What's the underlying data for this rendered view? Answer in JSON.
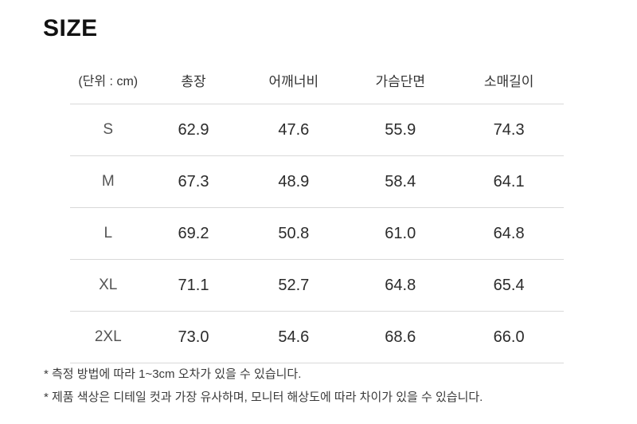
{
  "page": {
    "title": "SIZE"
  },
  "table": {
    "headers": [
      "(단위 : cm)",
      "총장",
      "어깨너비",
      "가슴단면",
      "소매길이"
    ],
    "rows": [
      {
        "size": "S",
        "values": [
          "62.9",
          "47.6",
          "55.9",
          "74.3"
        ]
      },
      {
        "size": "M",
        "values": [
          "67.3",
          "48.9",
          "58.4",
          "64.1"
        ]
      },
      {
        "size": "L",
        "values": [
          "69.2",
          "50.8",
          "61.0",
          "64.8"
        ]
      },
      {
        "size": "XL",
        "values": [
          "71.1",
          "52.7",
          "64.8",
          "65.4"
        ]
      },
      {
        "size": "2XL",
        "values": [
          "73.0",
          "54.6",
          "68.6",
          "66.0"
        ]
      }
    ]
  },
  "notes": [
    "* 측정 방법에 따라 1~3cm 오차가 있을 수 있습니다.",
    "* 제품 색상은 디테일 컷과 가장 유사하며, 모니터 해상도에 따라 차이가 있을 수 있습니다."
  ],
  "colors": {
    "divider": "#d9d9d9",
    "text_primary": "#2b2b2b",
    "text_secondary": "#555555"
  },
  "chart_data": {
    "type": "table",
    "title": "SIZE",
    "unit": "cm",
    "categories": [
      "S",
      "M",
      "L",
      "XL",
      "2XL"
    ],
    "series": [
      {
        "name": "총장",
        "values": [
          62.9,
          67.3,
          69.2,
          71.1,
          73.0
        ]
      },
      {
        "name": "어깨너비",
        "values": [
          47.6,
          48.9,
          50.8,
          52.7,
          54.6
        ]
      },
      {
        "name": "가슴단면",
        "values": [
          55.9,
          58.4,
          61.0,
          64.8,
          68.6
        ]
      },
      {
        "name": "소매길이",
        "values": [
          74.3,
          64.1,
          64.8,
          65.4,
          66.0
        ]
      }
    ]
  }
}
